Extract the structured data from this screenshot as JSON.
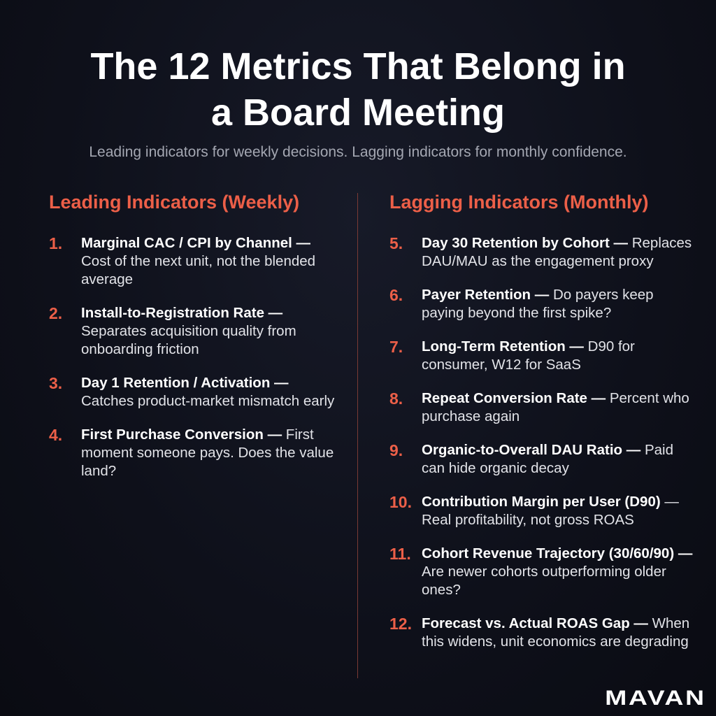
{
  "header": {
    "title": "The 12 Metrics That Belong in a Board Meeting",
    "subtitle": "Leading indicators for weekly decisions. Lagging indicators for monthly confidence."
  },
  "columns": [
    {
      "heading": "Leading Indicators (Weekly)",
      "items": [
        {
          "number": "1.",
          "name": "Marginal CAC / CPI by Channel —",
          "description": "Cost of the next unit, not the blended average"
        },
        {
          "number": "2.",
          "name": "Install-to-Registration Rate —",
          "description": "Separates acquisition quality from onboarding friction"
        },
        {
          "number": "3.",
          "name": "Day 1 Retention / Activation —",
          "description": "Catches product-market mismatch early"
        },
        {
          "number": "4.",
          "name": "First Purchase Conversion —",
          "description": "First moment someone pays. Does the value land?"
        }
      ]
    },
    {
      "heading": "Lagging Indicators (Monthly)",
      "items": [
        {
          "number": "5.",
          "name": "Day 30 Retention by Cohort —",
          "description": "Replaces DAU/MAU as the engagement proxy"
        },
        {
          "number": "6.",
          "name": "Payer Retention —",
          "description": "Do payers keep paying beyond the first spike?"
        },
        {
          "number": "7.",
          "name": "Long-Term Retention —",
          "description": "D90 for consumer, W12 for SaaS"
        },
        {
          "number": "8.",
          "name": "Repeat Conversion Rate —",
          "description": "Percent who purchase again"
        },
        {
          "number": "9.",
          "name": "Organic-to-Overall DAU Ratio —",
          "description": "Paid can hide organic decay"
        },
        {
          "number": "10.",
          "name": "Contribution Margin per User (D90)",
          "description": "— Real profitability, not gross ROAS"
        },
        {
          "number": "11.",
          "name": "Cohort Revenue Trajectory (30/60/90) —",
          "description": "Are newer cohorts outperforming older ones?"
        },
        {
          "number": "12.",
          "name": "Forecast vs. Actual ROAS Gap —",
          "description": "When this widens, unit economics are degrading"
        }
      ]
    }
  ],
  "logo": "MAVAN"
}
